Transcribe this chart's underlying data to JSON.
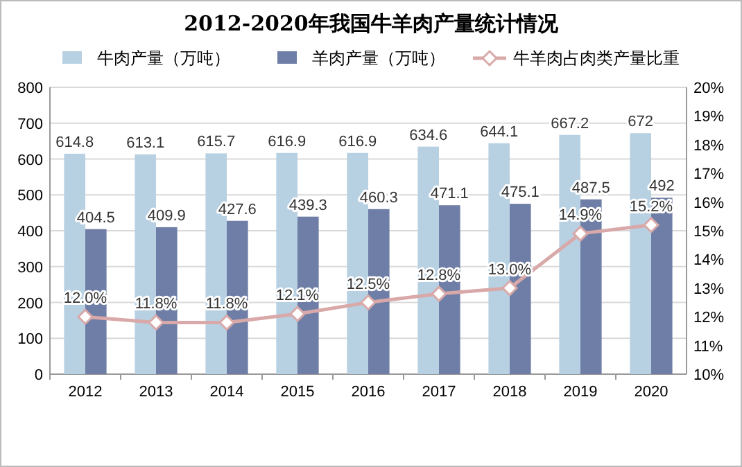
{
  "chart_data": {
    "type": "bar",
    "title": "2012-2020年我国牛羊肉产量统计情况",
    "categories": [
      "2012",
      "2013",
      "2014",
      "2015",
      "2016",
      "2017",
      "2018",
      "2019",
      "2020"
    ],
    "series": [
      {
        "name": "牛肉产量（万吨）",
        "color": "#b7d0e2",
        "values": [
          614.8,
          613.1,
          615.7,
          616.9,
          616.9,
          634.6,
          644.1,
          667.2,
          672
        ]
      },
      {
        "name": "羊肉产量（万吨）",
        "color": "#6f7ea6",
        "values": [
          404.5,
          409.9,
          427.6,
          439.3,
          460.3,
          471.1,
          475.1,
          487.5,
          492
        ]
      },
      {
        "name": "牛羊肉占肉类产量比重",
        "type": "line",
        "axis": "y2",
        "color": "#d9a9a9",
        "values": [
          12.0,
          11.8,
          11.8,
          12.1,
          12.5,
          12.8,
          13.0,
          14.9,
          15.2
        ],
        "value_labels": [
          "12.0%",
          "11.8%",
          "11.8%",
          "12.1%",
          "12.5%",
          "12.8%",
          "13.0%",
          "14.9%",
          "15.2%"
        ]
      }
    ],
    "ylim": [
      0,
      800
    ],
    "yticks": [
      0,
      100,
      200,
      300,
      400,
      500,
      600,
      700,
      800
    ],
    "y2lim": [
      10,
      20
    ],
    "y2ticks": [
      {
        "value": 10,
        "label": "10%"
      },
      {
        "value": 11,
        "label": "11%"
      },
      {
        "value": 12,
        "label": "12%"
      },
      {
        "value": 13,
        "label": "13%"
      },
      {
        "value": 14,
        "label": "14%"
      },
      {
        "value": 15,
        "label": "15%"
      },
      {
        "value": 16,
        "label": "16%"
      },
      {
        "value": 17,
        "label": "17%"
      },
      {
        "value": 18,
        "label": "18%"
      },
      {
        "value": 19,
        "label": "19%"
      },
      {
        "value": 20,
        "label": "20%"
      }
    ],
    "grid": "y",
    "legend": "top",
    "marker": "diamond",
    "data_labels": true
  }
}
